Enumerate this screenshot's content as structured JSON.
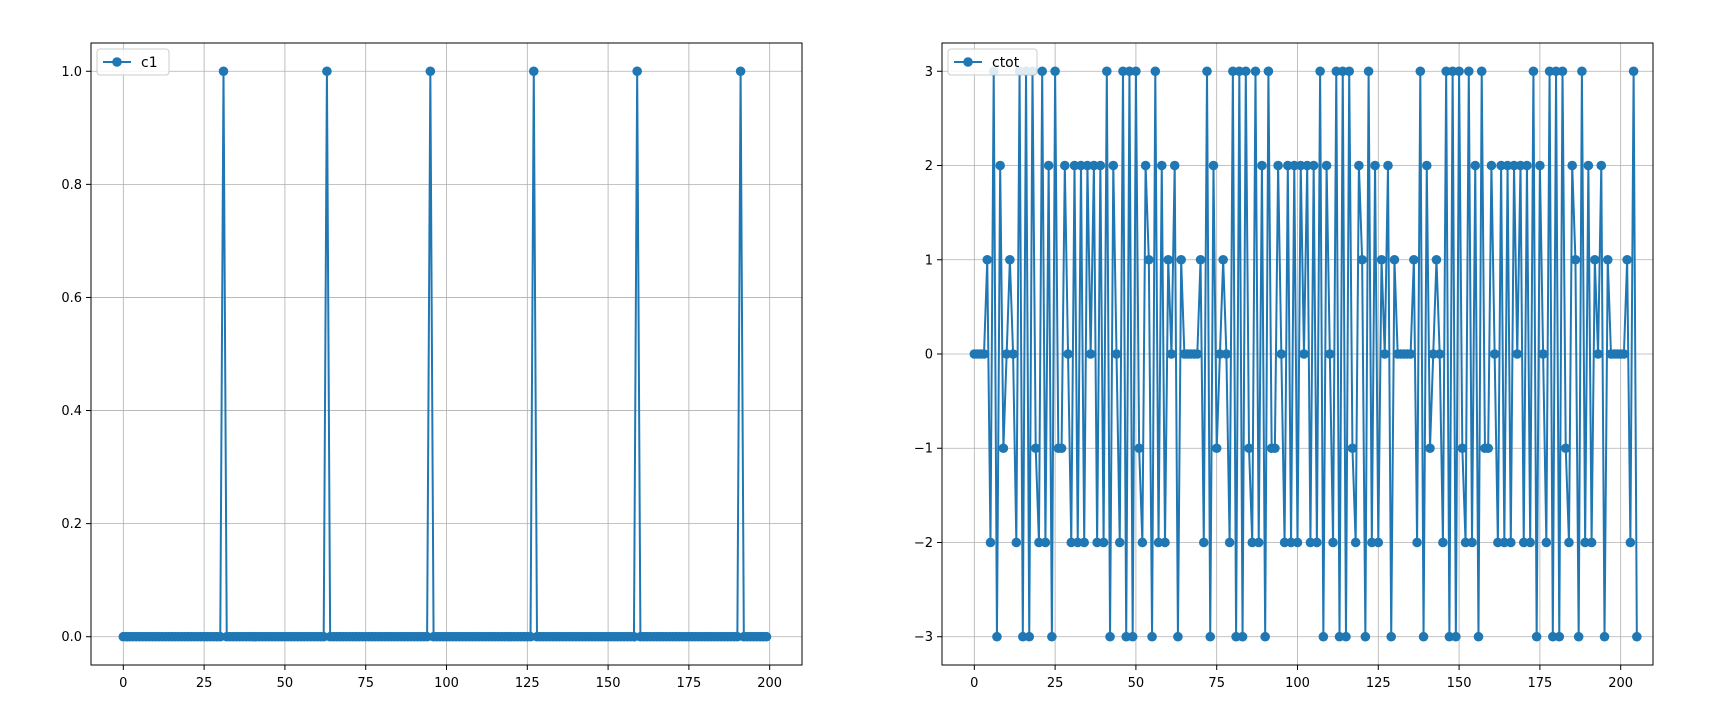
{
  "chart_data": [
    {
      "type": "line",
      "marker": "circle",
      "grid": true,
      "legend_position": "upper-left",
      "color": "#1f77b4",
      "title": "",
      "xlabel": "",
      "ylabel": "",
      "xlim": [
        -10,
        210
      ],
      "ylim": [
        -0.05,
        1.05
      ],
      "xticks": [
        0,
        25,
        50,
        75,
        100,
        125,
        150,
        175,
        200
      ],
      "yticks": [
        0.0,
        0.2,
        0.4,
        0.6,
        0.8,
        1.0
      ],
      "ytick_labels": [
        "0.0",
        "0.2",
        "0.4",
        "0.6",
        "0.8",
        "1.0"
      ],
      "series": [
        {
          "name": "c1",
          "x_start": 0,
          "x_step": 1,
          "values": [
            0,
            0,
            0,
            0,
            0,
            0,
            0,
            0,
            0,
            0,
            0,
            0,
            0,
            0,
            0,
            0,
            0,
            0,
            0,
            0,
            0,
            0,
            0,
            0,
            0,
            0,
            0,
            0,
            0,
            0,
            0,
            1,
            0,
            0,
            0,
            0,
            0,
            0,
            0,
            0,
            0,
            0,
            0,
            0,
            0,
            0,
            0,
            0,
            0,
            0,
            0,
            0,
            0,
            0,
            0,
            0,
            0,
            0,
            0,
            0,
            0,
            0,
            0,
            1,
            0,
            0,
            0,
            0,
            0,
            0,
            0,
            0,
            0,
            0,
            0,
            0,
            0,
            0,
            0,
            0,
            0,
            0,
            0,
            0,
            0,
            0,
            0,
            0,
            0,
            0,
            0,
            0,
            0,
            0,
            0,
            1,
            0,
            0,
            0,
            0,
            0,
            0,
            0,
            0,
            0,
            0,
            0,
            0,
            0,
            0,
            0,
            0,
            0,
            0,
            0,
            0,
            0,
            0,
            0,
            0,
            0,
            0,
            0,
            0,
            0,
            0,
            0,
            1,
            0,
            0,
            0,
            0,
            0,
            0,
            0,
            0,
            0,
            0,
            0,
            0,
            0,
            0,
            0,
            0,
            0,
            0,
            0,
            0,
            0,
            0,
            0,
            0,
            0,
            0,
            0,
            0,
            0,
            0,
            0,
            1,
            0,
            0,
            0,
            0,
            0,
            0,
            0,
            0,
            0,
            0,
            0,
            0,
            0,
            0,
            0,
            0,
            0,
            0,
            0,
            0,
            0,
            0,
            0,
            0,
            0,
            0,
            0,
            0,
            0,
            0,
            0,
            1,
            0,
            0,
            0,
            0,
            0,
            0,
            0,
            0
          ]
        }
      ]
    },
    {
      "type": "line",
      "marker": "circle",
      "grid": true,
      "legend_position": "upper-left",
      "color": "#1f77b4",
      "title": "",
      "xlabel": "",
      "ylabel": "",
      "xlim": [
        -10,
        210
      ],
      "ylim": [
        -3.3,
        3.3
      ],
      "xticks": [
        0,
        25,
        50,
        75,
        100,
        125,
        150,
        175,
        200
      ],
      "yticks": [
        -3,
        -2,
        -1,
        0,
        1,
        2,
        3
      ],
      "ytick_labels": [
        "−3",
        "−2",
        "−1",
        "0",
        "1",
        "2",
        "3"
      ],
      "series": [
        {
          "name": "ctot",
          "x_start": 0,
          "x_step": 1,
          "values": [
            0,
            0,
            0,
            0,
            1,
            -2,
            3,
            -3,
            2,
            -1,
            0,
            1,
            0,
            -2,
            3,
            -3,
            3,
            -3,
            3,
            -1,
            -2,
            3,
            -2,
            2,
            -3,
            3,
            -1,
            -1,
            2,
            0,
            -2,
            2,
            -2,
            2,
            -2,
            2,
            0,
            2,
            -2,
            2,
            -2,
            3,
            -3,
            2,
            0,
            -2,
            3,
            -3,
            3,
            -3,
            3,
            -1,
            -2,
            2,
            1,
            -3,
            3,
            -2,
            2,
            -2,
            1,
            0,
            2,
            -3,
            1,
            0,
            0,
            0,
            0,
            0,
            1,
            -2,
            3,
            -3,
            2,
            -1,
            0,
            1,
            0,
            -2,
            3,
            -3,
            3,
            -3,
            3,
            -1,
            -2,
            3,
            -2,
            2,
            -3,
            3,
            -1,
            -1,
            2,
            0,
            -2,
            2,
            -2,
            2,
            -2,
            2,
            0,
            2,
            -2,
            2,
            -2,
            3,
            -3,
            2,
            0,
            -2,
            3,
            -3,
            3,
            -3,
            3,
            -1,
            -2,
            2,
            1,
            -3,
            3,
            -2,
            2,
            -2,
            1,
            0,
            2,
            -3,
            1,
            0,
            0,
            0,
            0,
            0,
            1,
            -2,
            3,
            -3,
            2,
            -1,
            0,
            1,
            0,
            -2,
            3,
            -3,
            3,
            -3,
            3,
            -1,
            -2,
            3,
            -2,
            2,
            -3,
            3,
            -1,
            -1,
            2,
            0,
            -2,
            2,
            -2,
            2,
            -2,
            2,
            0,
            2,
            -2,
            2,
            -2,
            3,
            -3,
            2,
            0,
            -2,
            3,
            -3,
            3,
            -3,
            3,
            -1,
            -2,
            2,
            1,
            -3,
            3,
            -2,
            2,
            -2,
            1,
            0,
            2,
            -3,
            1,
            0,
            0,
            0,
            0,
            0,
            1,
            -2,
            3,
            -3
          ]
        }
      ]
    }
  ]
}
